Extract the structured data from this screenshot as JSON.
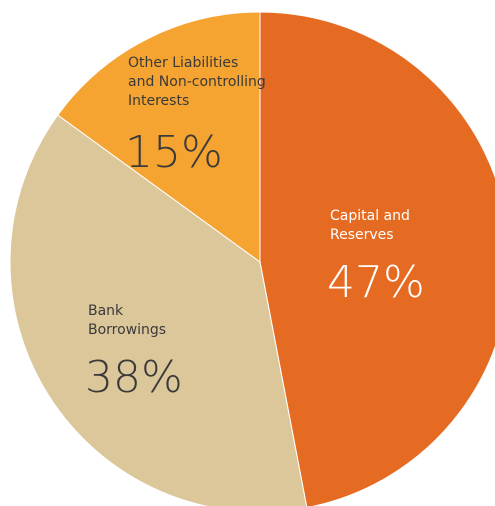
{
  "chart_data": {
    "type": "pie",
    "title": "",
    "slices": [
      {
        "label_lines": [
          "Capital and",
          "Reserves"
        ],
        "value": 47,
        "value_label": "47%",
        "color": "#e66b22",
        "text_color": "#ffffff"
      },
      {
        "label_lines": [
          "Bank",
          "Borrowings"
        ],
        "value": 38,
        "value_label": "38%",
        "color": "#dcc79a",
        "text_color": "#3a3a3a"
      },
      {
        "label_lines": [
          "Other Liabilities",
          "and Non-controlling",
          "Interests"
        ],
        "value": 15,
        "value_label": "15%",
        "color": "#f5a331",
        "text_color": "#3a3a3a"
      }
    ]
  }
}
